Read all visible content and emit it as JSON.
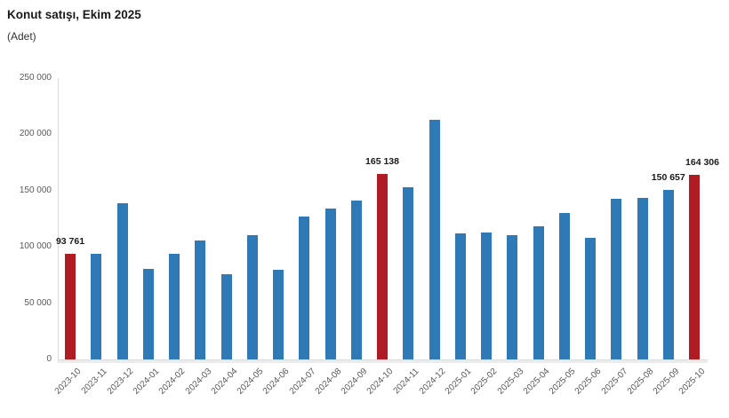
{
  "title": "Konut satışı, Ekim 2025",
  "subtitle": "(Adet)",
  "chart_data": {
    "type": "bar",
    "title": "Konut satışı, Ekim 2025",
    "ylabel": "(Adet)",
    "xlabel": "",
    "grid": false,
    "legend_position": "none",
    "ylim": [
      0,
      250000
    ],
    "ytick_step": 50000,
    "ytick_labels": [
      "0",
      "50 000",
      "100 000",
      "150 000",
      "200 000",
      "250 000"
    ],
    "categories": [
      "2023-10",
      "2023-11",
      "2023-12",
      "2024-01",
      "2024-02",
      "2024-03",
      "2024-04",
      "2024-05",
      "2024-06",
      "2024-07",
      "2024-08",
      "2024-09",
      "2024-10",
      "2024-11",
      "2024-12",
      "2025-01",
      "2025-02",
      "2025-03",
      "2025-04",
      "2025-05",
      "2025-06",
      "2025-07",
      "2025-08",
      "2025-09",
      "2025-10"
    ],
    "values": [
      93761,
      93672,
      138577,
      80308,
      93902,
      105476,
      75569,
      110588,
      79313,
      127088,
      134155,
      140919,
      165138,
      153014,
      212637,
      112173,
      112818,
      110795,
      118359,
      130025,
      107723,
      142858,
      143319,
      150657,
      164306
    ],
    "highlighted_categories": [
      "2023-10",
      "2024-10",
      "2025-10"
    ],
    "data_labels": {
      "2023-10": "93 761",
      "2024-10": "165 138",
      "2025-09": "150 657",
      "2025-10": "164 306"
    },
    "colors": {
      "bar": "#3079b7",
      "highlight": "#b01c23",
      "axis_line": "#d9d9d9",
      "axis_text": "#595959",
      "label_text": "#1a1a1a"
    }
  }
}
